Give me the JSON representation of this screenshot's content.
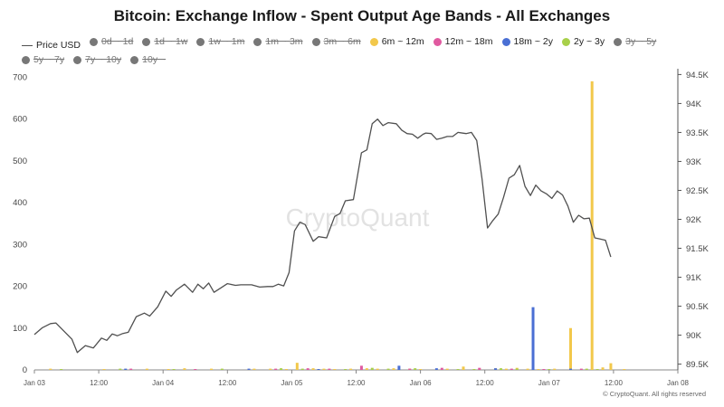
{
  "chart_data": {
    "type": "bar",
    "title": "Bitcoin: Exchange Inflow - Spent Output Age Bands - All Exchanges",
    "watermark": "CryptoQuant",
    "footer": "© CryptoQuant. All rights reserved",
    "colors": {
      "price": "#505050",
      "band_6m_12m": "#f2c84b",
      "band_12m_18m": "#e05aa0",
      "band_18m_2y": "#4a6fd4",
      "band_2y_3y": "#a8d04a",
      "disabled": "#777777"
    },
    "legend": [
      {
        "label": "Price USD",
        "type": "line",
        "color": "#505050",
        "disabled": false
      },
      {
        "label": "0d ~ 1d",
        "type": "dot",
        "color": "#777777",
        "disabled": true
      },
      {
        "label": "1d ~ 1w",
        "type": "dot",
        "color": "#777777",
        "disabled": true
      },
      {
        "label": "1w ~ 1m",
        "type": "dot",
        "color": "#777777",
        "disabled": true
      },
      {
        "label": "1m ~ 3m",
        "type": "dot",
        "color": "#777777",
        "disabled": true
      },
      {
        "label": "3m ~ 6m",
        "type": "dot",
        "color": "#777777",
        "disabled": true
      },
      {
        "label": "6m ~ 12m",
        "type": "dot",
        "color": "#f2c84b",
        "disabled": false
      },
      {
        "label": "12m ~ 18m",
        "type": "dot",
        "color": "#e05aa0",
        "disabled": false
      },
      {
        "label": "18m ~ 2y",
        "type": "dot",
        "color": "#4a6fd4",
        "disabled": false
      },
      {
        "label": "2y ~ 3y",
        "type": "dot",
        "color": "#a8d04a",
        "disabled": false
      },
      {
        "label": "3y ~ 5y",
        "type": "dot",
        "color": "#777777",
        "disabled": true
      },
      {
        "label": "5y ~ 7y",
        "type": "dot",
        "color": "#777777",
        "disabled": true
      },
      {
        "label": "7y ~ 10y",
        "type": "dot",
        "color": "#777777",
        "disabled": true
      },
      {
        "label": "10y ~",
        "type": "dot",
        "color": "#777777",
        "disabled": true
      }
    ],
    "x_ticks": [
      "Jan 03",
      "12:00",
      "Jan 04",
      "12:00",
      "Jan 05",
      "12:00",
      "Jan 06",
      "12:00",
      "Jan 07",
      "12:00",
      "Jan 08"
    ],
    "y_left": {
      "ticks": [
        0,
        100,
        200,
        300,
        400,
        500,
        600,
        700
      ],
      "lim": [
        0,
        720
      ]
    },
    "y_right": {
      "ticks": [
        "89.5K",
        "90K",
        "90.5K",
        "91K",
        "91.5K",
        "92K",
        "92.5K",
        "93K",
        "93.5K",
        "94K",
        "94.5K"
      ],
      "lim": [
        89400,
        94600
      ]
    },
    "x_range_hours": [
      0,
      120
    ],
    "grid": false,
    "price_series": {
      "name": "Price USD",
      "points": [
        [
          0,
          90010
        ],
        [
          1.5,
          90130
        ],
        [
          3,
          90200
        ],
        [
          4,
          90210
        ],
        [
          5.5,
          90070
        ],
        [
          7,
          89930
        ],
        [
          8,
          89700
        ],
        [
          9.5,
          89820
        ],
        [
          11,
          89780
        ],
        [
          12.5,
          89950
        ],
        [
          13.5,
          89910
        ],
        [
          14.5,
          90020
        ],
        [
          15.5,
          89990
        ],
        [
          16.5,
          90030
        ],
        [
          17.5,
          90050
        ],
        [
          19,
          90320
        ],
        [
          20.5,
          90380
        ],
        [
          21.5,
          90330
        ],
        [
          23,
          90490
        ],
        [
          24.5,
          90760
        ],
        [
          25.5,
          90670
        ],
        [
          26.5,
          90780
        ],
        [
          28,
          90880
        ],
        [
          29.5,
          90740
        ],
        [
          30.5,
          90880
        ],
        [
          31.5,
          90800
        ],
        [
          32.5,
          90900
        ],
        [
          33.5,
          90740
        ],
        [
          35,
          90830
        ],
        [
          36,
          90890
        ],
        [
          37.5,
          90860
        ],
        [
          38.5,
          90870
        ],
        [
          40.5,
          90870
        ],
        [
          42,
          90830
        ],
        [
          43.5,
          90840
        ],
        [
          44.5,
          90840
        ],
        [
          45.5,
          90880
        ],
        [
          46.5,
          90850
        ],
        [
          47.5,
          91080
        ],
        [
          48.5,
          91800
        ],
        [
          49.5,
          91950
        ],
        [
          50.5,
          91910
        ],
        [
          52,
          91620
        ],
        [
          53,
          91700
        ],
        [
          54.5,
          91680
        ],
        [
          56,
          92050
        ],
        [
          57,
          92100
        ],
        [
          58,
          92320
        ],
        [
          59.5,
          92340
        ],
        [
          61,
          93150
        ],
        [
          62,
          93200
        ],
        [
          63,
          93650
        ],
        [
          64,
          93730
        ],
        [
          65,
          93620
        ],
        [
          66,
          93670
        ],
        [
          67.5,
          93650
        ],
        [
          68.5,
          93540
        ],
        [
          69.5,
          93480
        ],
        [
          70.5,
          93470
        ],
        [
          71.5,
          93400
        ],
        [
          72.5,
          93470
        ],
        [
          73,
          93490
        ],
        [
          74,
          93480
        ],
        [
          75,
          93380
        ],
        [
          76,
          93400
        ],
        [
          77,
          93430
        ],
        [
          78,
          93430
        ],
        [
          79,
          93500
        ],
        [
          80.5,
          93480
        ],
        [
          81.5,
          93500
        ],
        [
          82.5,
          93360
        ],
        [
          83.5,
          92690
        ],
        [
          84.5,
          91850
        ],
        [
          85.5,
          91980
        ],
        [
          86.5,
          92090
        ],
        [
          87.5,
          92380
        ],
        [
          88.5,
          92710
        ],
        [
          89.5,
          92770
        ],
        [
          90.5,
          92930
        ],
        [
          91.5,
          92570
        ],
        [
          92.5,
          92410
        ],
        [
          93.5,
          92590
        ],
        [
          94.5,
          92490
        ],
        [
          95.5,
          92440
        ],
        [
          96.5,
          92360
        ],
        [
          97.5,
          92490
        ],
        [
          98.5,
          92420
        ],
        [
          99.5,
          92230
        ],
        [
          100.5,
          91950
        ],
        [
          101.5,
          92070
        ],
        [
          102.5,
          92010
        ],
        [
          103.5,
          92020
        ],
        [
          104.5,
          91680
        ],
        [
          105.5,
          91660
        ],
        [
          106.5,
          91640
        ],
        [
          107.5,
          91350
        ]
      ]
    },
    "series": [
      {
        "name": "6m ~ 12m",
        "color": "#f2c84b",
        "points": [
          [
            3,
            3
          ],
          [
            13,
            2
          ],
          [
            21,
            3
          ],
          [
            25,
            2
          ],
          [
            28,
            4
          ],
          [
            33,
            3
          ],
          [
            41,
            3
          ],
          [
            44,
            3
          ],
          [
            47,
            2
          ],
          [
            49,
            17
          ],
          [
            52,
            4
          ],
          [
            54,
            3
          ],
          [
            56,
            2
          ],
          [
            59,
            3
          ],
          [
            62,
            4
          ],
          [
            64,
            3
          ],
          [
            67,
            4
          ],
          [
            70,
            3
          ],
          [
            72,
            2
          ],
          [
            77,
            3
          ],
          [
            80,
            8
          ],
          [
            83,
            3
          ],
          [
            86,
            4
          ],
          [
            88,
            3
          ],
          [
            90,
            5
          ],
          [
            92,
            3
          ],
          [
            94,
            2
          ],
          [
            97,
            3
          ],
          [
            100,
            100
          ],
          [
            104,
            690
          ],
          [
            106,
            6
          ],
          [
            107.5,
            16
          ],
          [
            110,
            2
          ]
        ]
      },
      {
        "name": "12m ~ 18m",
        "color": "#e05aa0",
        "points": [
          [
            18,
            3
          ],
          [
            30,
            2
          ],
          [
            45,
            3
          ],
          [
            51,
            4
          ],
          [
            55,
            3
          ],
          [
            61,
            10
          ],
          [
            70,
            3
          ],
          [
            76,
            5
          ],
          [
            83,
            5
          ],
          [
            89,
            3
          ],
          [
            95,
            2
          ],
          [
            102,
            3
          ]
        ]
      },
      {
        "name": "18m ~ 2y",
        "color": "#4a6fd4",
        "points": [
          [
            17,
            3
          ],
          [
            40,
            3
          ],
          [
            53,
            2
          ],
          [
            68,
            10
          ],
          [
            75,
            4
          ],
          [
            86,
            4
          ],
          [
            93,
            150
          ],
          [
            100,
            3
          ]
        ]
      },
      {
        "name": "2y ~ 3y",
        "color": "#a8d04a",
        "points": [
          [
            5,
            2
          ],
          [
            16,
            3
          ],
          [
            26,
            2
          ],
          [
            35,
            3
          ],
          [
            46,
            4
          ],
          [
            50,
            3
          ],
          [
            58,
            2
          ],
          [
            63,
            5
          ],
          [
            66,
            3
          ],
          [
            71,
            4
          ],
          [
            79,
            2
          ],
          [
            82,
            2
          ],
          [
            87,
            4
          ],
          [
            90,
            3
          ],
          [
            96,
            2
          ],
          [
            103,
            3
          ],
          [
            105,
            2
          ]
        ]
      }
    ]
  }
}
